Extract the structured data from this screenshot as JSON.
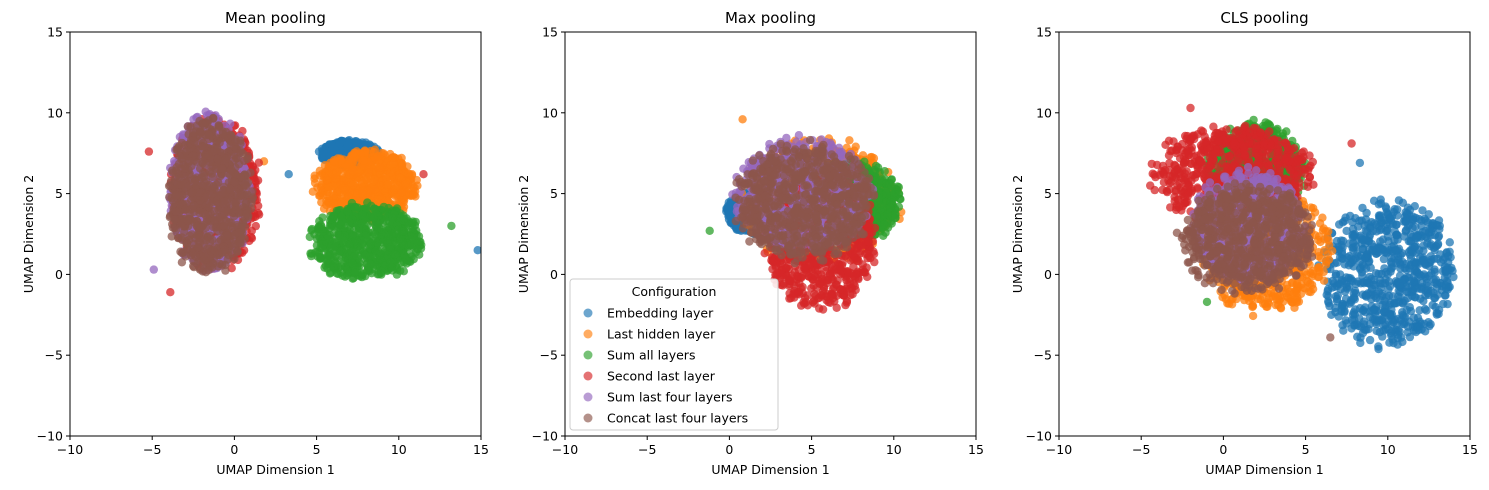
{
  "legend": {
    "title": "Configuration",
    "placement": "lower-left of second panel"
  },
  "series_meta": [
    {
      "name": "Embedding layer",
      "color": "#1f77b4"
    },
    {
      "name": "Last hidden layer",
      "color": "#ff7f0e"
    },
    {
      "name": "Sum all layers",
      "color": "#2ca02c"
    },
    {
      "name": "Second last layer",
      "color": "#d62728"
    },
    {
      "name": "Sum last four layers",
      "color": "#9467bd"
    },
    {
      "name": "Concat last four layers",
      "color": "#8c564b"
    }
  ],
  "chart_data": [
    {
      "type": "scatter",
      "title": "Mean pooling",
      "xlabel": "UMAP Dimension 1",
      "ylabel": "UMAP Dimension 2",
      "xlim": [
        -10,
        15
      ],
      "ylim": [
        -10,
        15
      ],
      "xticks": [
        -10,
        -5,
        0,
        5,
        10,
        15
      ],
      "yticks": [
        -10,
        -5,
        0,
        5,
        10,
        15
      ],
      "grid": false,
      "clusters": [
        {
          "series": "Embedding layer",
          "center": [
            7.0,
            7.5
          ],
          "spread": [
            1.8,
            0.8
          ],
          "outliers": [
            [
              14.8,
              1.5
            ],
            [
              3.3,
              6.2
            ]
          ]
        },
        {
          "series": "Last hidden layer",
          "center": [
            8.0,
            5.5
          ],
          "spread": [
            3.2,
            2.2
          ],
          "outliers": [
            [
              10.8,
              6.2
            ],
            [
              1.8,
              7.0
            ]
          ]
        },
        {
          "series": "Sum all layers",
          "center": [
            8.0,
            2.0
          ],
          "spread": [
            3.5,
            2.4
          ],
          "outliers": [
            [
              13.2,
              3.0
            ]
          ]
        },
        {
          "series": "Second last layer",
          "center": [
            -1.2,
            5.0
          ],
          "spread": [
            2.8,
            4.8
          ],
          "outliers": [
            [
              -3.9,
              -1.1
            ],
            [
              -5.2,
              7.6
            ],
            [
              11.5,
              6.2
            ]
          ]
        },
        {
          "series": "Sum last four layers",
          "center": [
            -1.5,
            5.0
          ],
          "spread": [
            2.5,
            5.0
          ],
          "outliers": [
            [
              -4.9,
              0.3
            ]
          ]
        },
        {
          "series": "Concat last four layers",
          "center": [
            -1.5,
            4.8
          ],
          "spread": [
            2.6,
            5.0
          ],
          "outliers": []
        }
      ]
    },
    {
      "type": "scatter",
      "title": "Max pooling",
      "xlabel": "UMAP Dimension 1",
      "ylabel": "UMAP Dimension 2",
      "xlim": [
        -10,
        15
      ],
      "ylim": [
        -10,
        15
      ],
      "xticks": [
        -10,
        -5,
        0,
        5,
        10,
        15
      ],
      "yticks": [
        -10,
        -5,
        0,
        5,
        10,
        15
      ],
      "grid": false,
      "clusters": [
        {
          "series": "Embedding layer",
          "center": [
            1.5,
            3.8
          ],
          "spread": [
            1.8,
            1.3
          ],
          "outliers": []
        },
        {
          "series": "Last hidden layer",
          "center": [
            5.5,
            4.5
          ],
          "spread": [
            4.8,
            4.0
          ],
          "outliers": [
            [
              0.8,
              9.6
            ],
            [
              7.3,
              8.3
            ]
          ]
        },
        {
          "series": "Sum all layers",
          "center": [
            7.5,
            4.5
          ],
          "spread": [
            3.0,
            2.5
          ],
          "outliers": [
            [
              -1.2,
              2.7
            ]
          ]
        },
        {
          "series": "Second last layer",
          "center": [
            5.5,
            2.0
          ],
          "spread": [
            3.5,
            4.3
          ],
          "outliers": []
        },
        {
          "series": "Sum last four layers",
          "center": [
            4.5,
            5.0
          ],
          "spread": [
            4.2,
            3.6
          ],
          "outliers": []
        },
        {
          "series": "Concat last four layers",
          "center": [
            4.5,
            4.5
          ],
          "spread": [
            4.3,
            3.7
          ],
          "outliers": []
        }
      ]
    },
    {
      "type": "scatter",
      "title": "CLS pooling",
      "xlabel": "UMAP Dimension 1",
      "ylabel": "UMAP Dimension 2",
      "xlim": [
        -10,
        15
      ],
      "ylim": [
        -10,
        15
      ],
      "xticks": [
        -10,
        -5,
        0,
        5,
        10,
        15
      ],
      "yticks": [
        -10,
        -5,
        0,
        5,
        10,
        15
      ],
      "grid": false,
      "clusters": [
        {
          "series": "Embedding layer",
          "center": [
            10.0,
            0.0
          ],
          "spread": [
            4.2,
            4.6
          ],
          "outliers": [
            [
              8.3,
              6.9
            ]
          ]
        },
        {
          "series": "Last hidden layer",
          "center": [
            2.5,
            1.5
          ],
          "spread": [
            4.0,
            4.0
          ],
          "outliers": []
        },
        {
          "series": "Sum all layers",
          "center": [
            2.0,
            6.5
          ],
          "spread": [
            3.0,
            3.0
          ],
          "outliers": [
            [
              -1.0,
              -1.7
            ]
          ]
        },
        {
          "series": "Second last layer",
          "center": [
            0.5,
            6.2
          ],
          "spread": [
            5.0,
            3.0
          ],
          "outliers": [
            [
              -2.0,
              10.3
            ],
            [
              7.8,
              8.1
            ]
          ]
        },
        {
          "series": "Sum last four layers",
          "center": [
            1.5,
            3.0
          ],
          "spread": [
            3.5,
            3.5
          ],
          "outliers": []
        },
        {
          "series": "Concat last four layers",
          "center": [
            1.5,
            2.2
          ],
          "spread": [
            4.2,
            3.4
          ],
          "outliers": [
            [
              6.5,
              -3.9
            ]
          ]
        }
      ]
    }
  ]
}
